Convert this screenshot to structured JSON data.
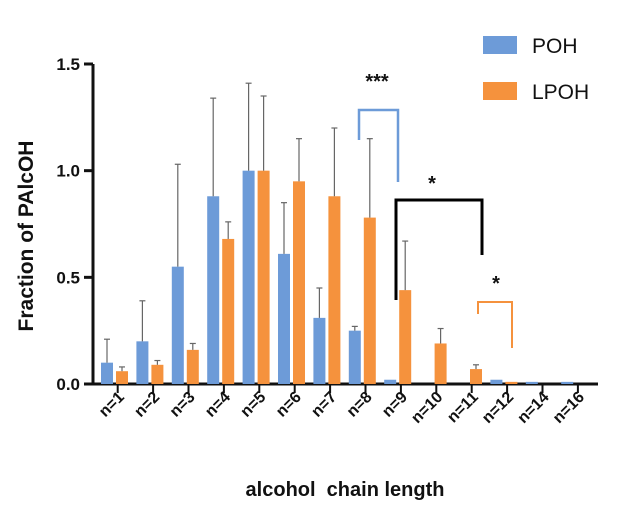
{
  "chart_data": {
    "type": "bar",
    "title": "",
    "ylabel": "Fraction of PAlcOH",
    "xlabel": "alcohol  chain length",
    "ylim": [
      0,
      1.5
    ],
    "yticks": [
      "0.0",
      "0.5",
      "1.0",
      "1.5"
    ],
    "ytick_values": [
      0,
      0.5,
      1.0,
      1.5
    ],
    "categories": [
      "n=1",
      "n=2",
      "n=3",
      "n=4",
      "n=5",
      "n=6",
      "n=7",
      "n=8",
      "n=9",
      "n=10",
      "n=11",
      "n=12",
      "n=14",
      "n=16"
    ],
    "series": [
      {
        "name": "POH",
        "color": "#6d9bd8",
        "values": [
          0.1,
          0.2,
          0.55,
          0.88,
          1.0,
          0.61,
          0.31,
          0.25,
          0.02,
          0,
          0,
          0.02,
          0.01,
          0.01
        ],
        "error": [
          0.11,
          0.19,
          0.48,
          0.46,
          0.41,
          0.24,
          0.14,
          0.02,
          0,
          0,
          0,
          0,
          0,
          0
        ]
      },
      {
        "name": "LPOH",
        "color": "#f5923d",
        "values": [
          0.06,
          0.09,
          0.16,
          0.68,
          1.0,
          0.95,
          0.88,
          0.78,
          0.44,
          0.19,
          0.07,
          0.01,
          0,
          0
        ],
        "error": [
          0.02,
          0.02,
          0.03,
          0.08,
          0.35,
          0.2,
          0.32,
          0.37,
          0.23,
          0.07,
          0.02,
          0,
          0,
          0
        ]
      }
    ],
    "legend_position": "top-right",
    "annotations": [
      {
        "label": "***",
        "color": "#6d9bd8",
        "between": [
          "n=8",
          "n=9"
        ]
      },
      {
        "label": "*",
        "color": "#000000",
        "between": [
          "n=9",
          "n=11"
        ]
      },
      {
        "label": "*",
        "color": "#f5923d",
        "between": [
          "n=11",
          "n=12"
        ]
      }
    ]
  }
}
